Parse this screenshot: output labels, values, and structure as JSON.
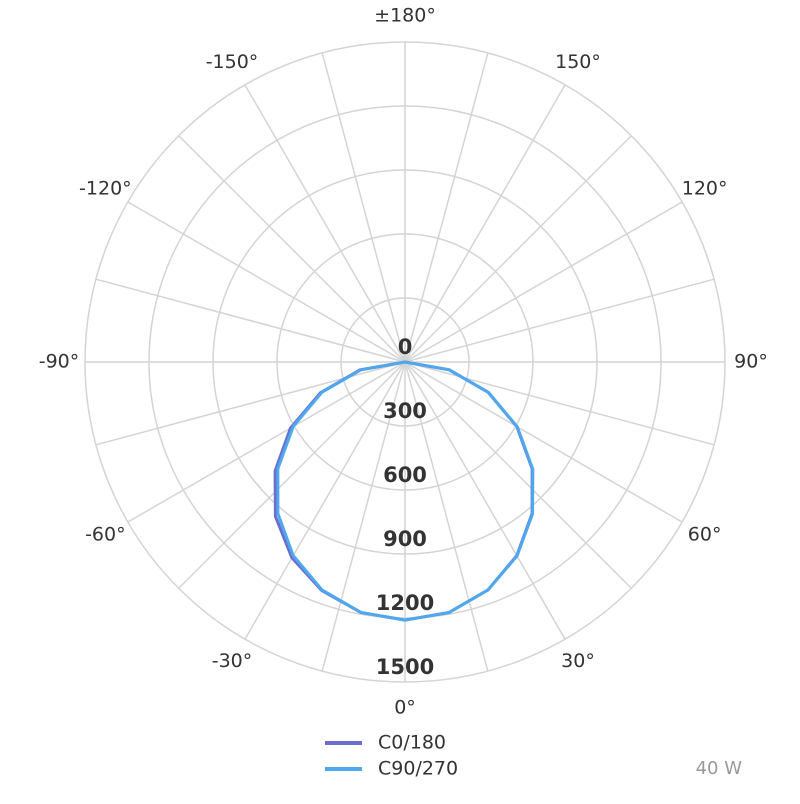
{
  "chart_data": {
    "type": "polar",
    "theta": [
      -90,
      -80,
      -70,
      -60,
      -50,
      -40,
      -30,
      -20,
      -10,
      0,
      10,
      20,
      30,
      40,
      50,
      60,
      70,
      80,
      90
    ],
    "series": [
      {
        "name": "C0/180",
        "color": "#6a6fcf",
        "values": [
          0,
          215,
          422,
          620,
          795,
          945,
          1060,
          1140,
          1192,
          1210,
          1192,
          1137,
          1048,
          927,
          778,
          605,
          414,
          210,
          0
        ]
      },
      {
        "name": "C90/270",
        "color": "#4ea8ee",
        "values": [
          0,
          210,
          414,
          605,
          778,
          927,
          1048,
          1137,
          1192,
          1210,
          1192,
          1137,
          1050,
          930,
          782,
          608,
          416,
          211,
          0
        ]
      }
    ],
    "rlim": [
      0,
      1500
    ],
    "rticks": [
      0,
      300,
      600,
      900,
      1200,
      1500
    ],
    "thetaticks": [
      {
        "value": 0,
        "label": "0°"
      },
      {
        "value": 30,
        "label": "30°"
      },
      {
        "value": 60,
        "label": "60°"
      },
      {
        "value": 90,
        "label": "90°"
      },
      {
        "value": 120,
        "label": "120°"
      },
      {
        "value": 150,
        "label": "150°"
      },
      {
        "value": 180,
        "label": "±180°"
      },
      {
        "value": -150,
        "label": "-150°"
      },
      {
        "value": -120,
        "label": "-120°"
      },
      {
        "value": -90,
        "label": "-90°"
      },
      {
        "value": -60,
        "label": "-60°"
      },
      {
        "value": -30,
        "label": "-30°"
      }
    ],
    "annotation": "40 W",
    "grid": true
  }
}
